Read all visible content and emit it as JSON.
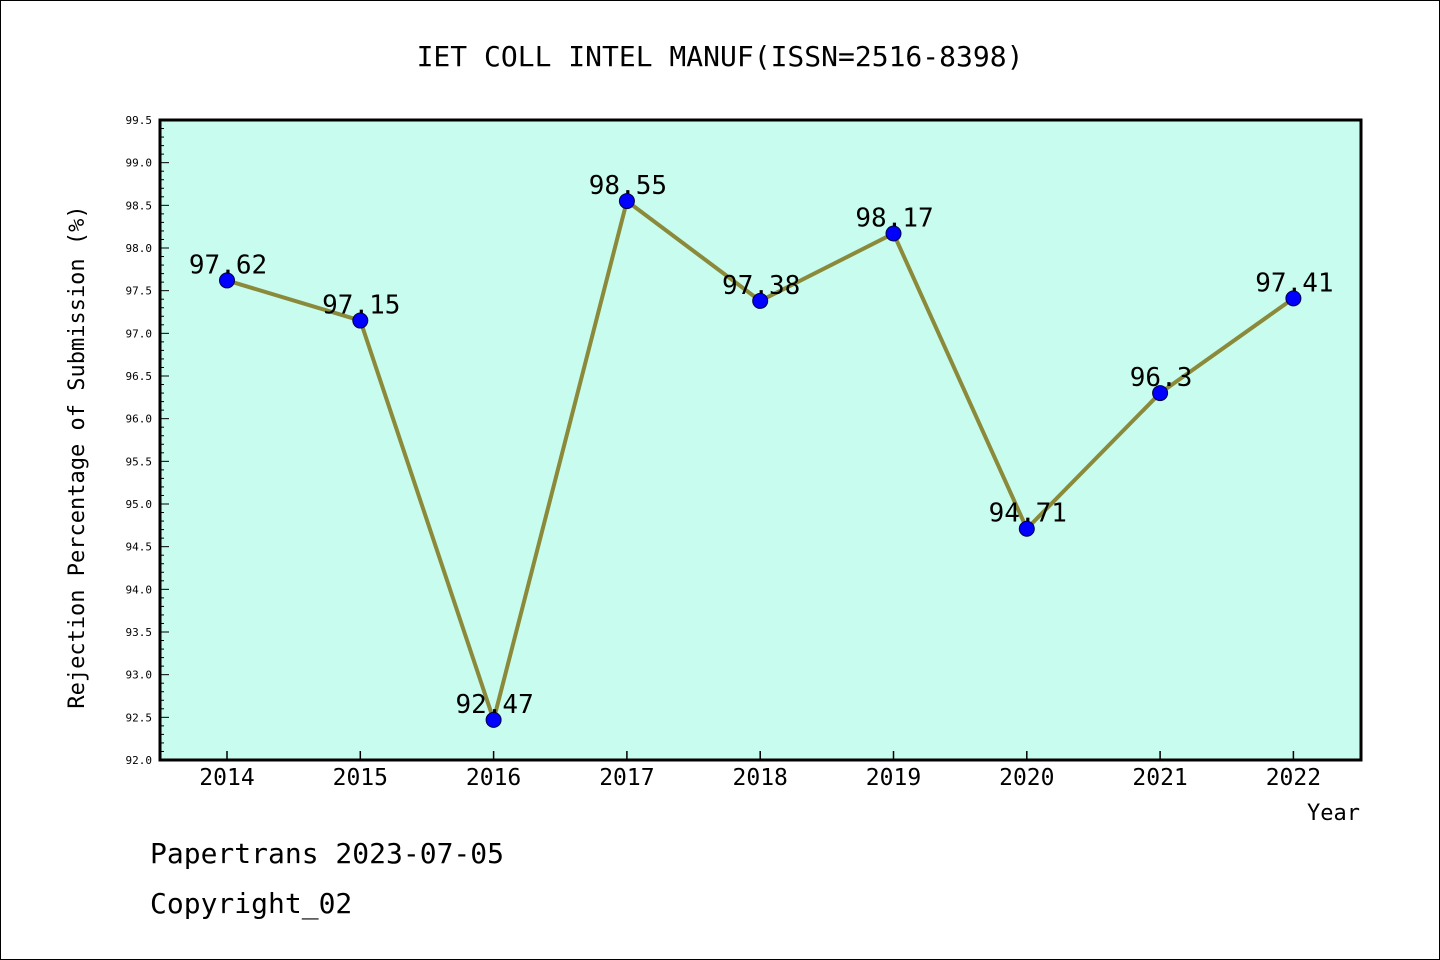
{
  "chart_data": {
    "type": "line",
    "title": "IET COLL INTEL MANUF(ISSN=2516-8398)",
    "xlabel": "Year",
    "ylabel": "Rejection Percentage of Submission (%)",
    "categories": [
      "2014",
      "2015",
      "2016",
      "2017",
      "2018",
      "2019",
      "2020",
      "2021",
      "2022"
    ],
    "values": [
      97.62,
      97.15,
      92.47,
      98.55,
      97.38,
      98.17,
      94.71,
      96.3,
      97.41
    ],
    "data_labels": [
      "97.62",
      "97.15",
      "92.47",
      "98.55",
      "97.38",
      "98.17",
      "94.71",
      "96.3",
      "97.41"
    ],
    "ylim": [
      92.0,
      99.5
    ],
    "yticks": [
      "92.0",
      "92.5",
      "93.0",
      "93.5",
      "94.0",
      "94.5",
      "95.0",
      "95.5",
      "96.0",
      "96.5",
      "97.0",
      "97.5",
      "98.0",
      "98.5",
      "99.0",
      "99.5"
    ],
    "colors": {
      "plot_background": "#c8fcee",
      "line": "#8b8a3a",
      "marker": "#0000ff"
    }
  },
  "footer": {
    "line1": "Papertrans 2023-07-05",
    "line2": "Copyright_02"
  }
}
